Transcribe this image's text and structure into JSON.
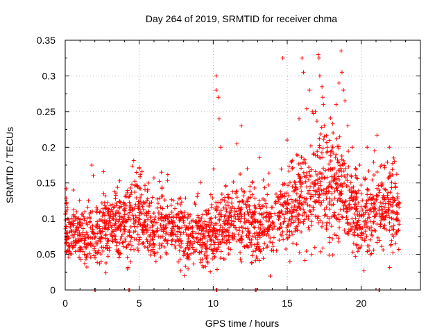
{
  "chart_data": {
    "type": "scatter",
    "title": "Day 264 of 2019, SRMTID for receiver chma",
    "xlabel": "GPS time / hours",
    "ylabel": "SRMTID / TECUs",
    "xlim": [
      0,
      24
    ],
    "ylim": [
      0,
      0.35
    ],
    "x_ticks": [
      0,
      5,
      10,
      15,
      20
    ],
    "x_tick_labels": [
      "0",
      "5",
      "10",
      "15",
      "20"
    ],
    "y_ticks": [
      0,
      0.05,
      0.1,
      0.15,
      0.2,
      0.25,
      0.3,
      0.35
    ],
    "y_tick_labels": [
      "0",
      "0.05",
      "0.1",
      "0.15",
      "0.2",
      "0.25",
      "0.3",
      "0.35"
    ],
    "grid": true,
    "marker": "plus",
    "series_color": "#ff0000",
    "series": [
      {
        "name": "SRMTID",
        "x_range": [
          0,
          22.6
        ],
        "trend": [
          [
            0,
            0.085
          ],
          [
            1,
            0.075
          ],
          [
            2,
            0.08
          ],
          [
            3,
            0.09
          ],
          [
            4,
            0.095
          ],
          [
            5,
            0.11
          ],
          [
            6,
            0.09
          ],
          [
            7,
            0.085
          ],
          [
            8,
            0.08
          ],
          [
            9,
            0.075
          ],
          [
            10,
            0.08
          ],
          [
            11,
            0.095
          ],
          [
            12,
            0.1
          ],
          [
            13,
            0.085
          ],
          [
            14,
            0.095
          ],
          [
            15,
            0.115
          ],
          [
            16,
            0.13
          ],
          [
            17,
            0.14
          ],
          [
            18,
            0.15
          ],
          [
            19,
            0.125
          ],
          [
            20,
            0.1
          ],
          [
            21,
            0.11
          ],
          [
            22,
            0.115
          ],
          [
            22.6,
            0.095
          ]
        ],
        "outliers": [
          [
            0.55,
            0.14
          ],
          [
            1.8,
            0.175
          ],
          [
            1.9,
            0.16
          ],
          [
            5.0,
            0.17
          ],
          [
            6.5,
            0.165
          ],
          [
            10.2,
            0.3
          ],
          [
            10.2,
            0.28
          ],
          [
            10.35,
            0.27
          ],
          [
            10.4,
            0.24
          ],
          [
            10.5,
            0.2
          ],
          [
            11.6,
            0.205
          ],
          [
            11.9,
            0.23
          ],
          [
            12.3,
            0.17
          ],
          [
            14.7,
            0.325
          ],
          [
            15.0,
            0.21
          ],
          [
            15.3,
            0.18
          ],
          [
            15.8,
            0.24
          ],
          [
            16.0,
            0.325
          ],
          [
            16.1,
            0.305
          ],
          [
            16.5,
            0.28
          ],
          [
            16.7,
            0.25
          ],
          [
            16.9,
            0.25
          ],
          [
            17.1,
            0.33
          ],
          [
            17.15,
            0.325
          ],
          [
            17.2,
            0.3
          ],
          [
            17.35,
            0.285
          ],
          [
            17.4,
            0.27
          ],
          [
            17.45,
            0.26
          ],
          [
            17.5,
            0.23
          ],
          [
            17.7,
            0.2
          ],
          [
            18.1,
            0.22
          ],
          [
            18.3,
            0.26
          ],
          [
            18.5,
            0.29
          ],
          [
            18.65,
            0.335
          ],
          [
            18.7,
            0.305
          ],
          [
            18.8,
            0.28
          ],
          [
            18.9,
            0.265
          ],
          [
            19.1,
            0.23
          ],
          [
            19.4,
            0.2
          ],
          [
            19.9,
            0.175
          ],
          [
            20.4,
            0.2
          ],
          [
            20.9,
            0.195
          ],
          [
            21.4,
            0.15
          ],
          [
            21.9,
            0.2
          ],
          [
            22.2,
            0.185
          ]
        ],
        "zero_points": [
          2.0,
          2.05,
          4.3,
          4.35,
          10.2,
          10.25,
          12.85,
          12.9,
          21.2,
          21.25
        ]
      }
    ]
  }
}
